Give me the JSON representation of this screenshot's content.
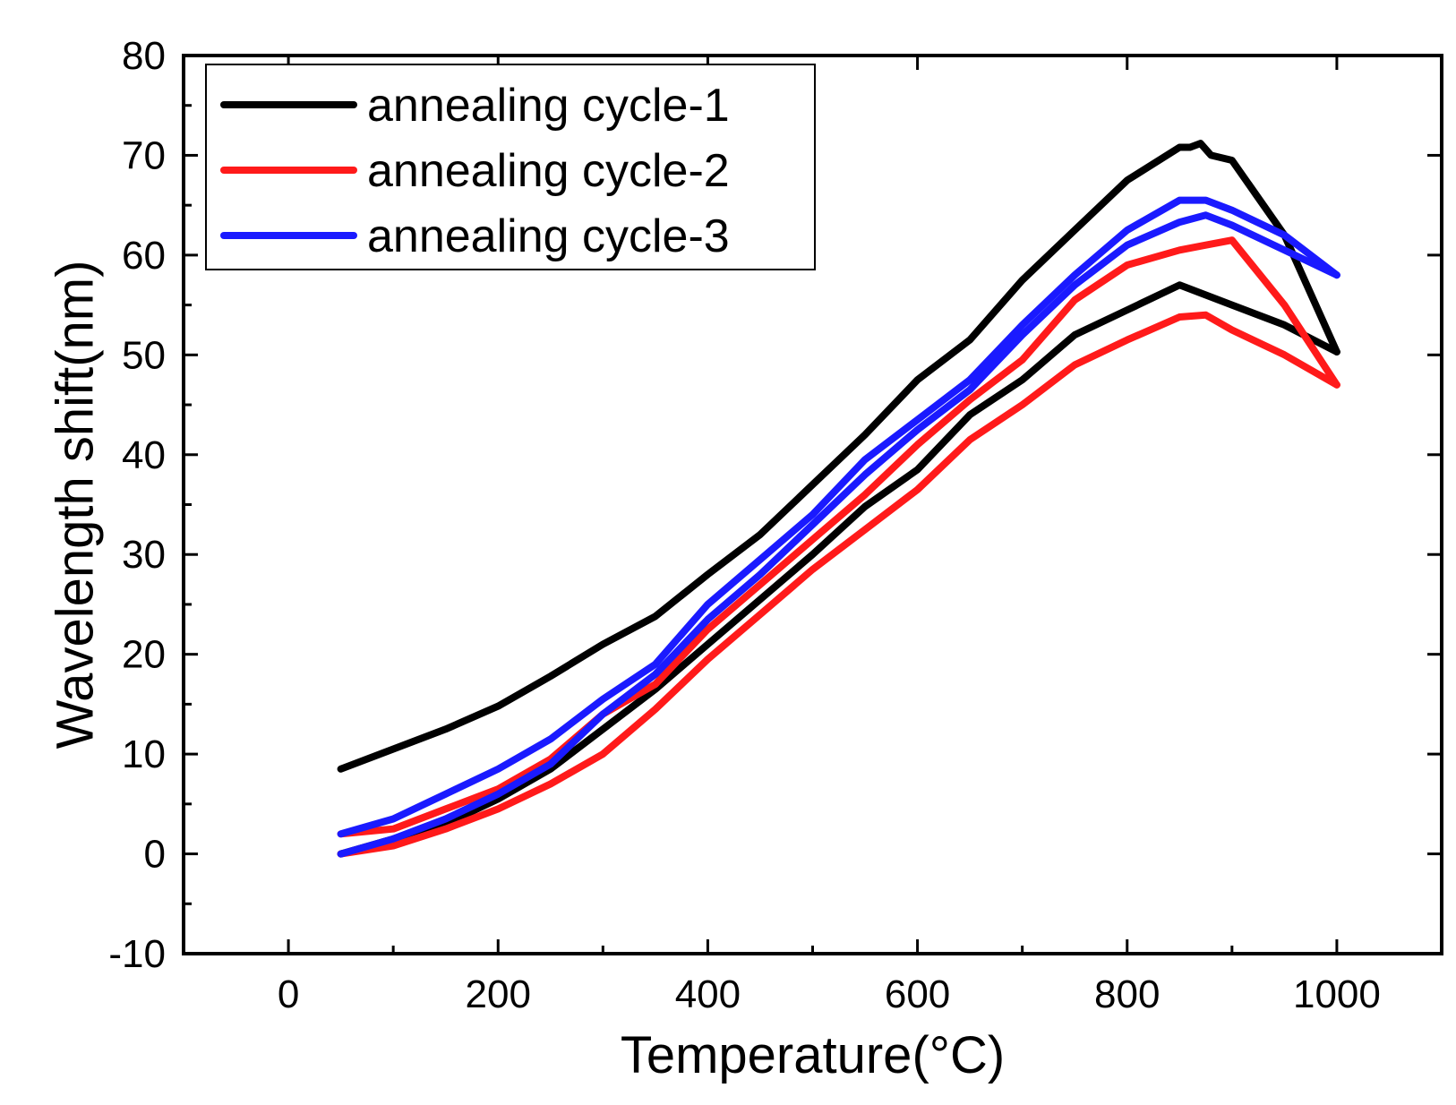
{
  "chart_data": {
    "type": "line",
    "title": "",
    "xlabel": "Temperature(°C)",
    "ylabel": "Wavelength shift(nm)",
    "xlim": [
      -100,
      1100
    ],
    "ylim": [
      -10,
      80
    ],
    "xticks": [
      0,
      200,
      400,
      600,
      800,
      1000
    ],
    "yticks": [
      -10,
      0,
      10,
      20,
      30,
      40,
      50,
      60,
      70,
      80
    ],
    "legend_position": "top-left",
    "colors": {
      "annealing cycle-1": "#000000",
      "annealing cycle-2": "#ff1a1a",
      "annealing cycle-3": "#1a1aff"
    },
    "series": [
      {
        "name": "annealing cycle-1",
        "part": "heating",
        "x": [
          50,
          100,
          150,
          200,
          250,
          300,
          350,
          400,
          450,
          500,
          550,
          600,
          650,
          700,
          750,
          800,
          850,
          860,
          870,
          880,
          900,
          950,
          1000
        ],
        "y": [
          8.5,
          10.5,
          12.5,
          14.8,
          17.8,
          21.0,
          23.8,
          28.0,
          32.0,
          37.0,
          42.0,
          47.5,
          51.5,
          57.5,
          62.5,
          67.5,
          70.8,
          70.8,
          71.2,
          70.0,
          69.5,
          62.0,
          50.3
        ]
      },
      {
        "name": "annealing cycle-1",
        "part": "cooling",
        "x": [
          1000,
          950,
          900,
          850,
          800,
          750,
          700,
          650,
          600,
          550,
          500,
          450,
          400,
          350,
          300,
          250,
          200,
          150,
          100,
          50
        ],
        "y": [
          50.3,
          53.0,
          55.0,
          57.0,
          54.5,
          52.0,
          47.5,
          44.0,
          38.5,
          34.8,
          30.0,
          25.5,
          21.0,
          16.5,
          12.5,
          8.5,
          5.5,
          3.0,
          1.5,
          0.0
        ]
      },
      {
        "name": "annealing cycle-2",
        "part": "heating",
        "x": [
          50,
          100,
          150,
          200,
          250,
          300,
          350,
          400,
          450,
          500,
          550,
          600,
          650,
          700,
          750,
          800,
          850,
          875,
          900,
          950,
          1000
        ],
        "y": [
          2.0,
          2.5,
          4.5,
          6.5,
          9.5,
          14.0,
          17.0,
          22.5,
          27.0,
          31.5,
          36.0,
          41.0,
          45.5,
          49.5,
          55.5,
          59.0,
          60.5,
          61.0,
          61.5,
          55.0,
          47.0
        ]
      },
      {
        "name": "annealing cycle-2",
        "part": "cooling",
        "x": [
          1000,
          950,
          900,
          875,
          850,
          800,
          750,
          700,
          650,
          600,
          550,
          500,
          450,
          400,
          350,
          300,
          250,
          200,
          150,
          100,
          50
        ],
        "y": [
          47.0,
          50.0,
          52.5,
          54.0,
          53.8,
          51.5,
          49.0,
          45.0,
          41.5,
          36.5,
          32.5,
          28.5,
          24.0,
          19.5,
          14.5,
          10.0,
          7.0,
          4.5,
          2.5,
          0.8,
          0.0
        ]
      },
      {
        "name": "annealing cycle-3",
        "part": "heating",
        "x": [
          50,
          100,
          150,
          200,
          250,
          300,
          350,
          400,
          450,
          500,
          550,
          600,
          650,
          700,
          750,
          800,
          850,
          875,
          900,
          950,
          1000
        ],
        "y": [
          2.0,
          3.5,
          6.0,
          8.5,
          11.5,
          15.5,
          19.0,
          25.0,
          29.5,
          34.0,
          39.5,
          43.5,
          47.5,
          53.0,
          58.0,
          62.5,
          65.5,
          65.5,
          64.5,
          62.0,
          58.0
        ]
      },
      {
        "name": "annealing cycle-3",
        "part": "cooling",
        "x": [
          1000,
          950,
          900,
          875,
          850,
          800,
          750,
          700,
          650,
          600,
          550,
          500,
          450,
          400,
          350,
          300,
          250,
          200,
          150,
          100,
          50
        ],
        "y": [
          58.0,
          60.5,
          63.0,
          64.0,
          63.3,
          61.0,
          57.0,
          52.0,
          46.5,
          42.5,
          38.0,
          33.0,
          28.0,
          23.5,
          18.0,
          14.0,
          9.0,
          6.0,
          3.5,
          1.5,
          0.0
        ]
      }
    ],
    "legend": [
      {
        "label": "annealing cycle-1",
        "color": "#000000"
      },
      {
        "label": "annealing cycle-2",
        "color": "#ff1a1a"
      },
      {
        "label": "annealing cycle-3",
        "color": "#1a1aff"
      }
    ]
  }
}
